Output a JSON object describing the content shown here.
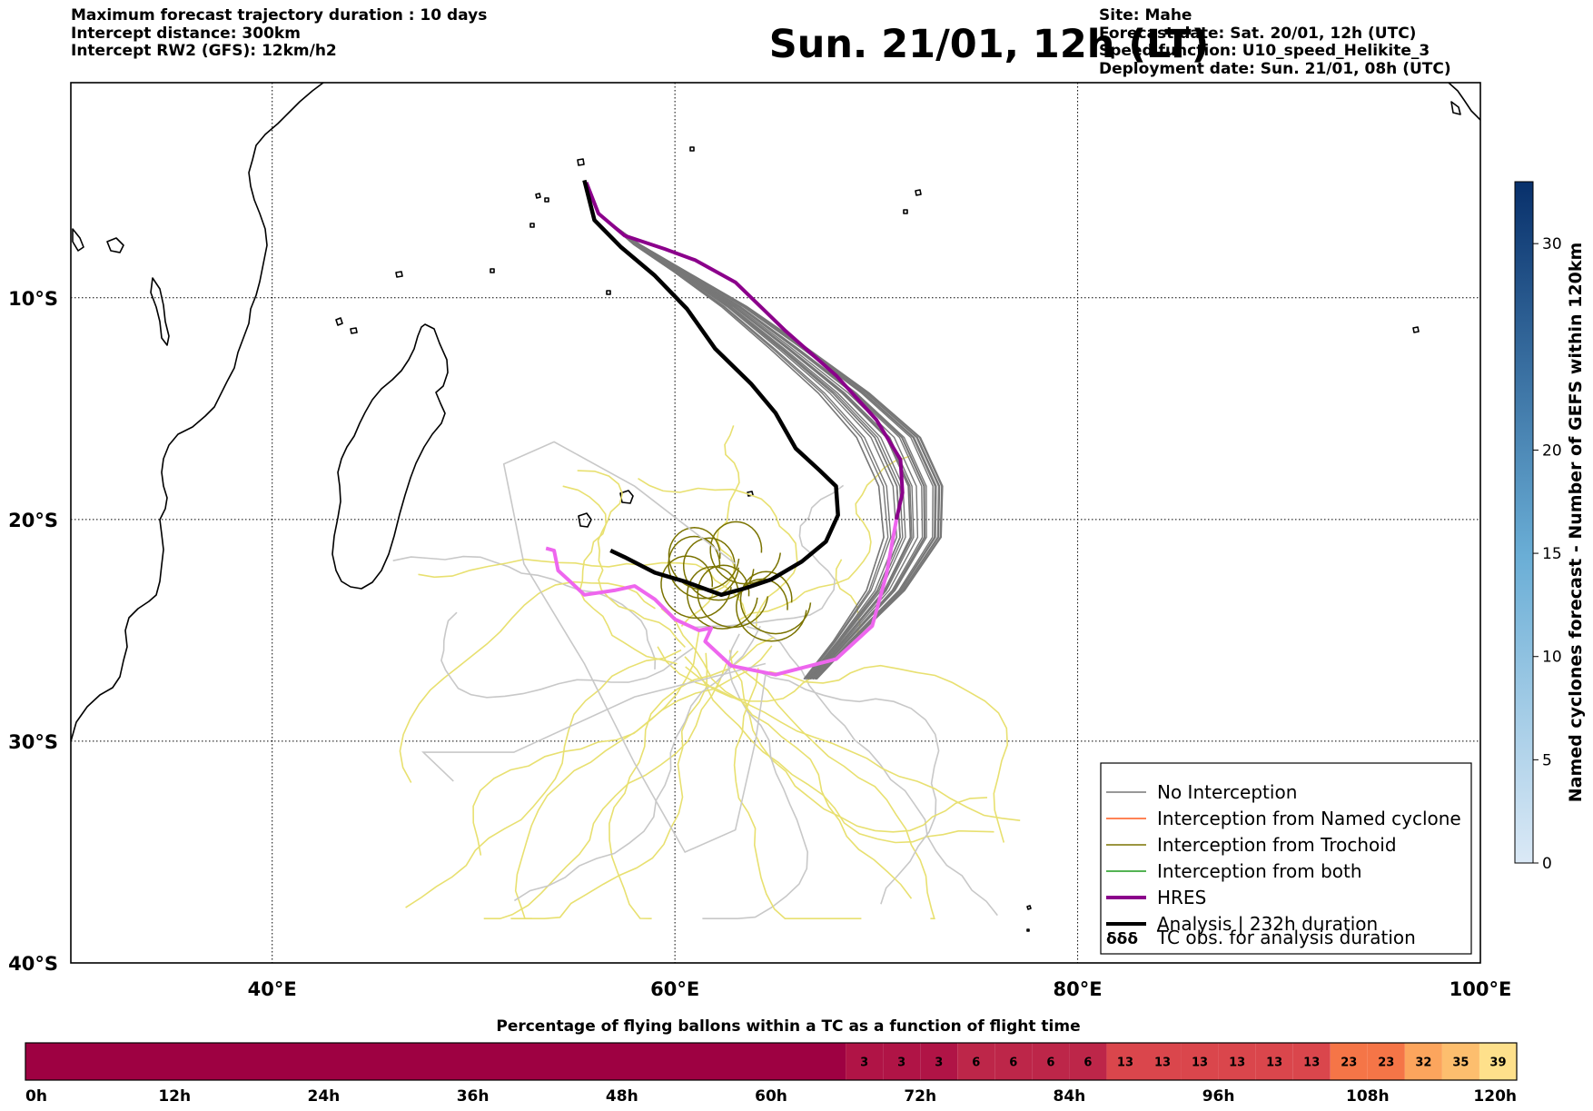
{
  "header": {
    "left_lines": [
      "Maximum forecast trajectory duration : 10 days",
      "Intercept distance: 300km",
      "Intercept RW2 (GFS):  12km/h2"
    ],
    "title": "Sun. 21/01, 12h (LT)",
    "right_lines": [
      "Site: Mahe",
      "Forecast date: Sat. 20/01, 12h (UTC)",
      "Speed function: U10_speed_Helikite_3",
      "Deployment date: Sun. 21/01, 08h (UTC)"
    ]
  },
  "map": {
    "lon_range": [
      30,
      100
    ],
    "lat_range": [
      -40,
      -0.3
    ],
    "lon_ticks": [
      {
        "value": 40,
        "label": "40°E"
      },
      {
        "value": 60,
        "label": "60°E"
      },
      {
        "value": 80,
        "label": "80°E"
      },
      {
        "value": 100,
        "label": "100°E"
      }
    ],
    "lat_ticks": [
      {
        "value": -10,
        "label": "10°S"
      },
      {
        "value": -20,
        "label": "20°S"
      },
      {
        "value": -30,
        "label": "30°S"
      },
      {
        "value": -40,
        "label": "40°S"
      }
    ],
    "grid": true,
    "colors": {
      "no_interception": "#777777",
      "named_cyclone": "#ff5a1e",
      "trochoid": "#7a7300",
      "both": "#1a9a1a",
      "hres": "#8b008b",
      "analysis": "#000000",
      "hres_after": "#ee66ee",
      "faint_gray": "#c8c8c8",
      "faint_yellow": "#e8e070"
    },
    "hres_track": [
      [
        55.6,
        -4.8
      ],
      [
        56.2,
        -6.2
      ],
      [
        57.5,
        -7.2
      ],
      [
        59.5,
        -7.8
      ],
      [
        61.0,
        -8.3
      ],
      [
        63.0,
        -9.3
      ],
      [
        65.5,
        -11.5
      ],
      [
        68.0,
        -13.5
      ],
      [
        70.0,
        -15.5
      ],
      [
        71.2,
        -17.3
      ],
      [
        71.3,
        -18.8
      ],
      [
        71.0,
        -20.0
      ]
    ],
    "hres_track_after": [
      [
        71.0,
        -20.0
      ],
      [
        70.5,
        -22.5
      ],
      [
        69.8,
        -24.8
      ],
      [
        68.0,
        -26.3
      ],
      [
        65.0,
        -27.0
      ],
      [
        62.8,
        -26.6
      ],
      [
        61.5,
        -25.5
      ],
      [
        61.8,
        -24.9
      ],
      [
        61.2,
        -25.0
      ],
      [
        60.0,
        -24.5
      ],
      [
        59.0,
        -23.6
      ],
      [
        58.0,
        -23.0
      ],
      [
        57.0,
        -23.2
      ],
      [
        55.5,
        -23.4
      ],
      [
        54.8,
        -22.8
      ],
      [
        54.2,
        -22.3
      ],
      [
        54.0,
        -21.4
      ],
      [
        53.6,
        -21.3
      ]
    ],
    "analysis_track": [
      [
        55.5,
        -4.7
      ],
      [
        56.0,
        -6.5
      ],
      [
        57.3,
        -7.7
      ],
      [
        59.0,
        -9.0
      ],
      [
        60.6,
        -10.5
      ],
      [
        62.0,
        -12.3
      ],
      [
        63.8,
        -13.9
      ],
      [
        65.0,
        -15.2
      ],
      [
        66.0,
        -16.8
      ],
      [
        67.2,
        -17.8
      ],
      [
        68.0,
        -18.5
      ],
      [
        68.1,
        -19.8
      ],
      [
        67.5,
        -21.0
      ],
      [
        66.3,
        -21.9
      ],
      [
        64.8,
        -22.7
      ],
      [
        63.5,
        -23.1
      ],
      [
        62.3,
        -23.4
      ],
      [
        60.5,
        -22.8
      ],
      [
        59.0,
        -22.4
      ],
      [
        57.5,
        -21.7
      ],
      [
        56.8,
        -21.4
      ]
    ],
    "islands": [
      {
        "name": "Seychelles",
        "lon": 55.5,
        "lat": -4.6
      },
      {
        "name": "Mauritius",
        "lon": 57.6,
        "lat": -20.2
      },
      {
        "name": "Reunion",
        "lon": 55.5,
        "lat": -21.1
      }
    ]
  },
  "legend": {
    "items": [
      {
        "label": "No Interception",
        "color": "#777777",
        "width": 1.5
      },
      {
        "label": "Interception from Named cyclone",
        "color": "#ff5a1e",
        "width": 1.5
      },
      {
        "label": "Interception from Trochoid",
        "color": "#7a7300",
        "width": 1.5
      },
      {
        "label": "Interception from both",
        "color": "#1a9a1a",
        "width": 1.5
      },
      {
        "label": "HRES",
        "color": "#8b008b",
        "width": 4
      },
      {
        "label": "Analysis | 232h duration",
        "color": "#000000",
        "width": 4
      }
    ],
    "tc_symbol": "δδδ",
    "tc_label": "TC obs. for analysis duration"
  },
  "colorbar": {
    "label": "Named cyclones forecast - Number of GEFS within 120km",
    "min": 0,
    "max": 33,
    "ticks": [
      0,
      5,
      10,
      15,
      20,
      30
    ],
    "color_low": "#dbe9f6",
    "color_high": "#08306b"
  },
  "bottom_bar": {
    "title": "Percentage of flying ballons within a TC as a function of flight time",
    "tick_labels": [
      "0h",
      "12h",
      "24h",
      "36h",
      "48h",
      "60h",
      "72h",
      "84h",
      "96h",
      "108h",
      "120h"
    ],
    "segments": [
      {
        "from_h": 0,
        "to_h": 66,
        "value": "",
        "color": "#9e0142"
      },
      {
        "from_h": 66,
        "to_h": 69,
        "value": "3",
        "color": "#b01446"
      },
      {
        "from_h": 69,
        "to_h": 72,
        "value": "3",
        "color": "#b01446"
      },
      {
        "from_h": 72,
        "to_h": 75,
        "value": "3",
        "color": "#b01446"
      },
      {
        "from_h": 75,
        "to_h": 78,
        "value": "6",
        "color": "#bd2649"
      },
      {
        "from_h": 78,
        "to_h": 81,
        "value": "6",
        "color": "#bd2649"
      },
      {
        "from_h": 81,
        "to_h": 84,
        "value": "6",
        "color": "#bd2649"
      },
      {
        "from_h": 84,
        "to_h": 87,
        "value": "6",
        "color": "#bd2649"
      },
      {
        "from_h": 87,
        "to_h": 90,
        "value": "13",
        "color": "#da464c"
      },
      {
        "from_h": 90,
        "to_h": 93,
        "value": "13",
        "color": "#da464c"
      },
      {
        "from_h": 93,
        "to_h": 96,
        "value": "13",
        "color": "#da464c"
      },
      {
        "from_h": 96,
        "to_h": 99,
        "value": "13",
        "color": "#da464c"
      },
      {
        "from_h": 99,
        "to_h": 102,
        "value": "13",
        "color": "#da464c"
      },
      {
        "from_h": 102,
        "to_h": 105,
        "value": "13",
        "color": "#da464c"
      },
      {
        "from_h": 105,
        "to_h": 108,
        "value": "23",
        "color": "#f57547"
      },
      {
        "from_h": 108,
        "to_h": 111,
        "value": "23",
        "color": "#f57547"
      },
      {
        "from_h": 111,
        "to_h": 114,
        "value": "32",
        "color": "#fca55d"
      },
      {
        "from_h": 114,
        "to_h": 117,
        "value": "35",
        "color": "#fdbe6e"
      },
      {
        "from_h": 117,
        "to_h": 120,
        "value": "39",
        "color": "#fee08b"
      }
    ]
  }
}
